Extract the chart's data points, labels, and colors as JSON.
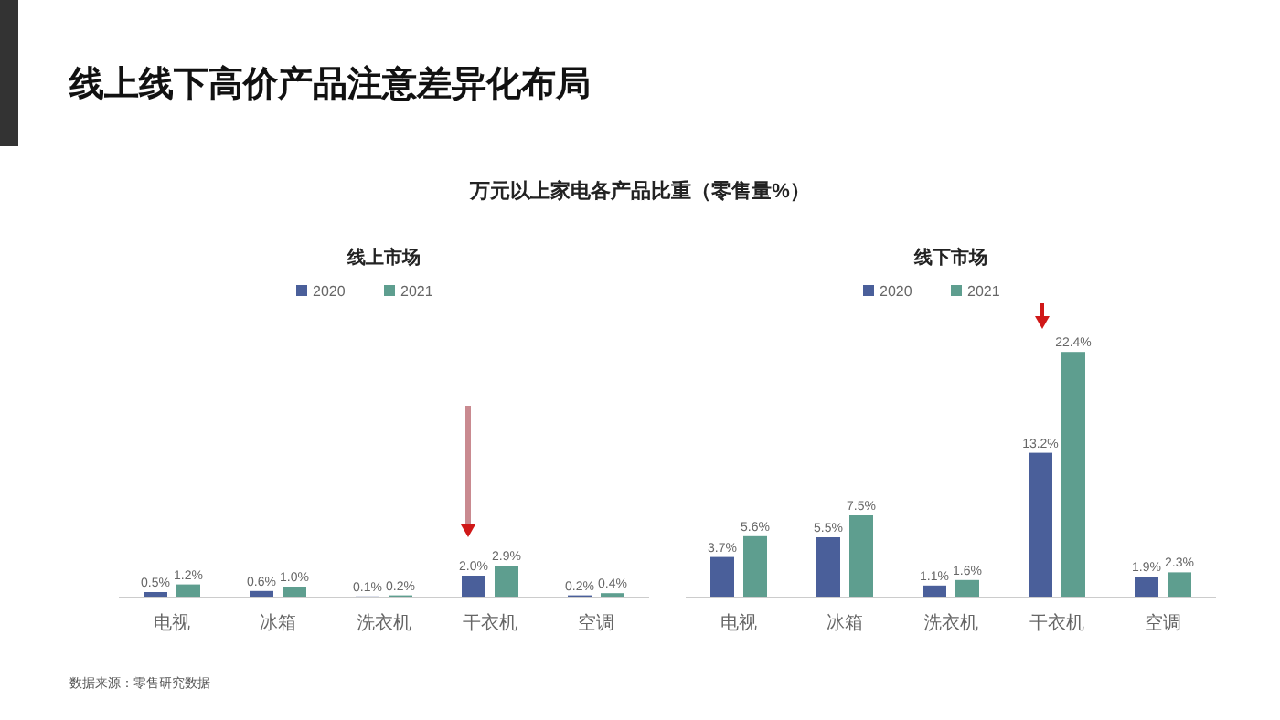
{
  "chart_data": [
    {
      "type": "bar",
      "title": "线上市场",
      "categories": [
        "电视",
        "冰箱",
        "洗衣机",
        "干衣机",
        "空调"
      ],
      "legend": "top",
      "series": [
        {
          "name": "2020",
          "color": "#4a5f9a",
          "values": [
            0.5,
            0.6,
            0.1,
            2.0,
            0.2
          ],
          "value_labels": [
            "0.5%",
            "0.6%",
            "0.1%",
            "2.0%",
            "0.2%"
          ]
        },
        {
          "name": "2021",
          "color": "#5e9e8f",
          "values": [
            1.2,
            1.0,
            0.2,
            2.9,
            0.4
          ],
          "value_labels": [
            "1.2%",
            "1.0%",
            "0.2%",
            "2.9%",
            "0.4%"
          ]
        }
      ],
      "annotations": [
        "线上线下高价产品注意差异化布局",
        "万元以上家电各产品比重（零售量%）",
        "数据来源：零售研究数据"
      ]
    },
    {
      "type": "bar",
      "title": "线下市场",
      "categories": [
        "电视",
        "冰箱",
        "洗衣机",
        "干衣机",
        "空调"
      ],
      "legend": "top",
      "series": [
        {
          "name": "2020",
          "color": "#4a5f9a",
          "values": [
            3.7,
            5.5,
            1.1,
            13.2,
            1.9
          ],
          "value_labels": [
            "3.7%",
            "5.5%",
            "1.1%",
            "13.2%",
            "1.9%"
          ]
        },
        {
          "name": "2021",
          "color": "#5e9e8f",
          "values": [
            5.6,
            7.5,
            1.6,
            22.4,
            2.3
          ],
          "value_labels": [
            "5.6%",
            "7.5%",
            "1.6%",
            "22.4%",
            "2.3%"
          ]
        }
      ]
    }
  ]
}
